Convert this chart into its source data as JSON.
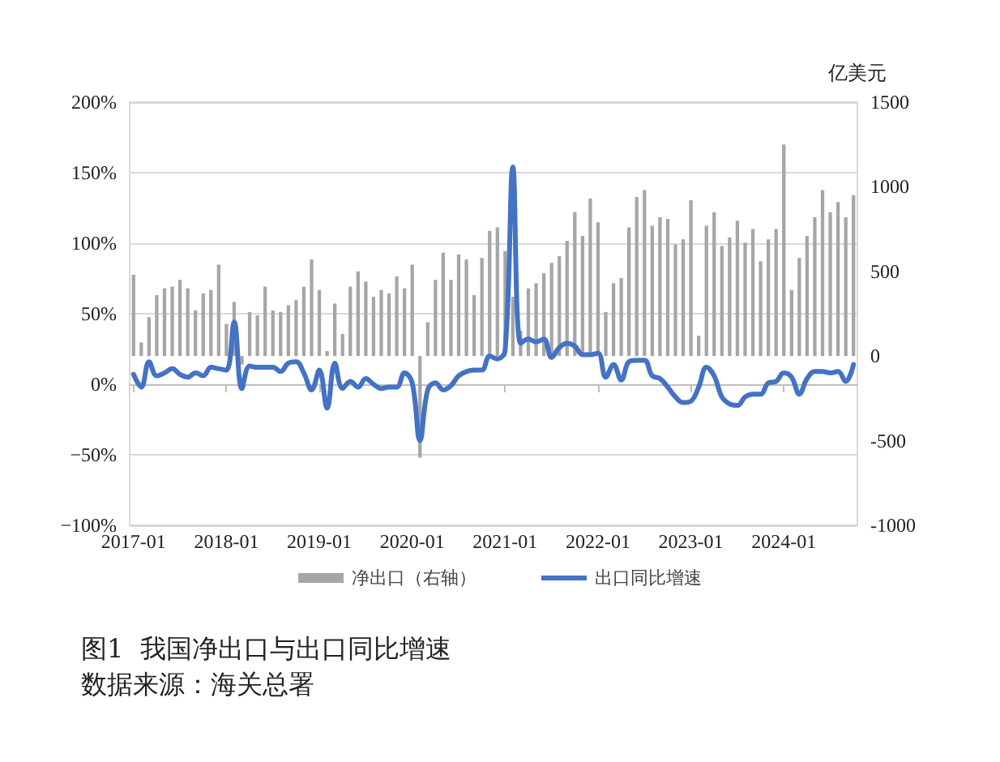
{
  "chart_data": {
    "type": "bar",
    "categories": [
      "2017-01",
      null,
      null,
      null,
      null,
      null,
      null,
      null,
      null,
      null,
      null,
      null,
      "2018-01",
      null,
      null,
      null,
      null,
      null,
      null,
      null,
      null,
      null,
      null,
      null,
      "2019-01",
      null,
      null,
      null,
      null,
      null,
      null,
      null,
      null,
      null,
      null,
      null,
      "2020-01",
      null,
      null,
      null,
      null,
      null,
      null,
      null,
      null,
      null,
      null,
      null,
      "2021-01",
      null,
      null,
      null,
      null,
      null,
      null,
      null,
      null,
      null,
      null,
      null,
      "2022-01",
      null,
      null,
      null,
      null,
      null,
      null,
      null,
      null,
      null,
      null,
      null,
      "2023-01",
      null,
      null,
      null,
      null,
      null,
      null,
      null,
      null,
      null,
      null,
      null,
      "2024-01",
      null,
      null,
      null,
      null,
      null,
      null,
      null,
      null,
      null
    ],
    "series": [
      {
        "name": "净出口（右轴）",
        "axis": "y2",
        "color": "#a6a6a6",
        "values": [
          480,
          80,
          230,
          360,
          400,
          410,
          450,
          400,
          270,
          370,
          390,
          540,
          190,
          320,
          -50,
          260,
          240,
          410,
          270,
          260,
          300,
          330,
          410,
          570,
          390,
          30,
          310,
          130,
          410,
          500,
          440,
          350,
          390,
          370,
          470,
          400,
          540,
          -600,
          200,
          450,
          610,
          450,
          600,
          570,
          360,
          580,
          740,
          760,
          620,
          350,
          150,
          400,
          430,
          490,
          550,
          590,
          680,
          850,
          710,
          930,
          790,
          260,
          430,
          460,
          760,
          940,
          980,
          770,
          820,
          810,
          660,
          690,
          920,
          120,
          770,
          850,
          650,
          700,
          800,
          670,
          750,
          560,
          690,
          750,
          1250,
          390,
          580,
          710,
          820,
          980,
          850,
          910,
          820,
          950
        ]
      },
      {
        "name": "出口同比增速",
        "type": "line",
        "color": "#4472c4",
        "values": [
          7,
          -2,
          16,
          6,
          8,
          11,
          7,
          5,
          8,
          6,
          12,
          11,
          10,
          44,
          -3,
          13,
          12,
          12,
          12,
          9,
          15,
          16,
          8,
          -4,
          10,
          -17,
          15,
          -3,
          2,
          -2,
          4,
          0,
          -3,
          -2,
          -2,
          8,
          1,
          -40,
          -4,
          1,
          -4,
          -1,
          6,
          9,
          10,
          10,
          20,
          18,
          24,
          154,
          29,
          32,
          30,
          32,
          19,
          26,
          29,
          27,
          21,
          21,
          22,
          5,
          14,
          3,
          16,
          17,
          17,
          6,
          4,
          -2,
          -9,
          -13,
          -12,
          -2,
          12,
          6,
          -9,
          -14,
          -15,
          -9,
          -7,
          -7,
          1,
          2,
          8,
          5,
          -7,
          4,
          9,
          9,
          8,
          9,
          2,
          14
        ]
      }
    ],
    "ylim": [
      -100,
      200
    ],
    "yticks": [
      {
        "value": -100,
        "label": "−100%"
      },
      {
        "value": -50,
        "label": "−50%"
      },
      {
        "value": 0,
        "label": "0%"
      },
      {
        "value": 50,
        "label": "50%"
      },
      {
        "value": 100,
        "label": "100%"
      },
      {
        "value": 150,
        "label": "150%"
      },
      {
        "value": 200,
        "label": "200%"
      }
    ],
    "y2lim": [
      -1000,
      1500
    ],
    "y2ticks": [
      -1000,
      -500,
      0,
      500,
      1000,
      1500
    ],
    "y2label": "亿美元",
    "grid": "y",
    "legend": "bottom",
    "annotations": [
      "图1  我国净出口与出口同比增速",
      "数据来源：海关总署"
    ]
  }
}
